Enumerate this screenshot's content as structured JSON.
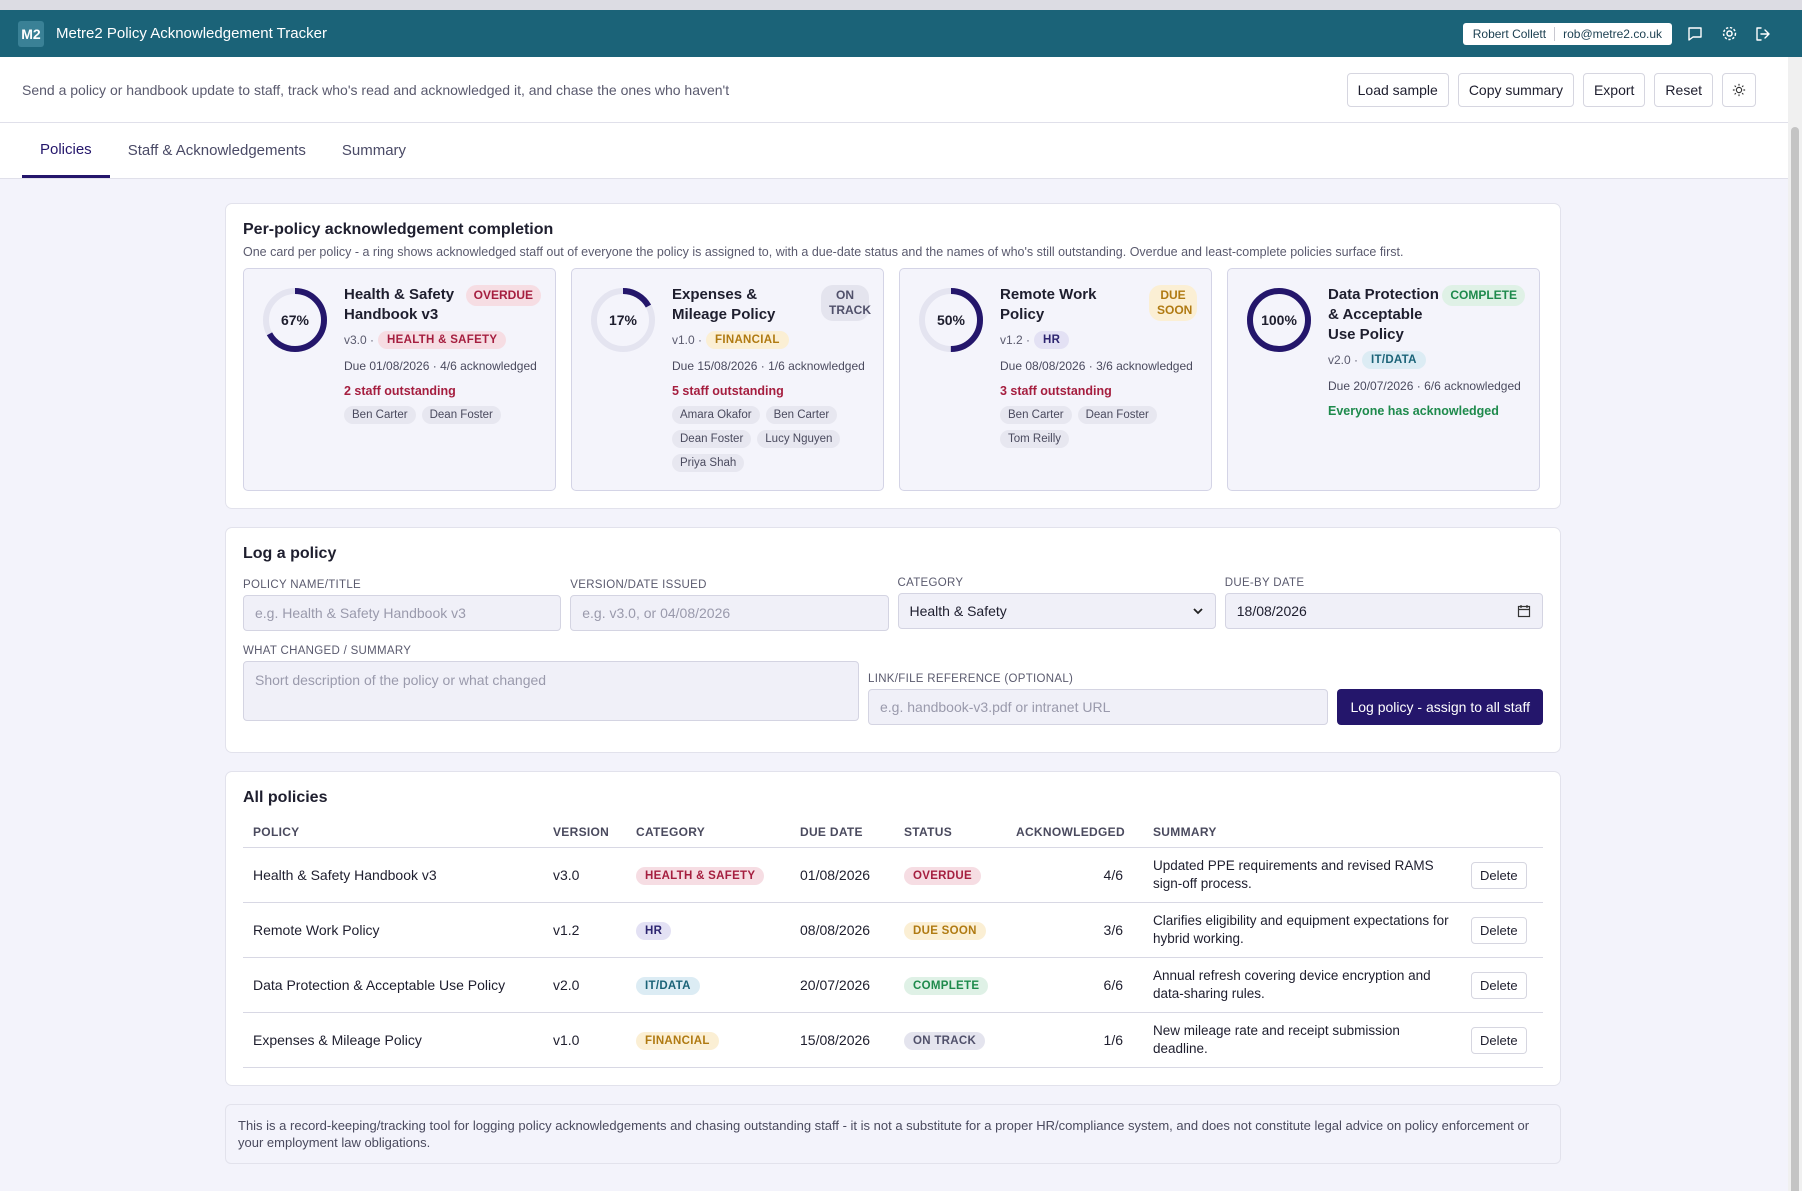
{
  "app": {
    "logo": "M2",
    "title": "Metre2 Policy Acknowledgement Tracker",
    "user_name": "Robert Collett",
    "user_email": "rob@metre2.co.uk"
  },
  "subbar": {
    "description": "Send a policy or handbook update to staff, track who's read and acknowledged it, and chase the ones who haven't",
    "load_sample": "Load sample",
    "copy_summary": "Copy summary",
    "export": "Export",
    "reset": "Reset"
  },
  "tabs": [
    {
      "label": "Policies",
      "active": true
    },
    {
      "label": "Staff & Acknowledgements",
      "active": false
    },
    {
      "label": "Summary",
      "active": false
    }
  ],
  "completion": {
    "title": "Per-policy acknowledgement completion",
    "description": "One card per policy - a ring shows acknowledged staff out of everyone the policy is assigned to, with a due-date status and the names of who's still outstanding. Overdue and least-complete policies surface first.",
    "cards": [
      {
        "pct_label": "67%",
        "fraction": 0.67,
        "title": "Health & Safety Handbook v3",
        "status": "OVERDUE",
        "version": "v3.0 ·",
        "category": "HEALTH & SAFETY",
        "due": "Due 01/08/2026 · 4/6 acknowledged",
        "outstanding": "2 staff outstanding",
        "names": [
          "Ben Carter",
          "Dean Foster"
        ]
      },
      {
        "pct_label": "17%",
        "fraction": 0.17,
        "title": "Expenses & Mileage Policy",
        "status": "ON TRACK",
        "version": "v1.0 ·",
        "category": "FINANCIAL",
        "due": "Due 15/08/2026 · 1/6 acknowledged",
        "outstanding": "5 staff outstanding",
        "names": [
          "Amara Okafor",
          "Ben Carter",
          "Dean Foster",
          "Lucy Nguyen",
          "Priya Shah"
        ]
      },
      {
        "pct_label": "50%",
        "fraction": 0.5,
        "title": "Remote Work Policy",
        "status": "DUE SOON",
        "version": "v1.2 ·",
        "category": "HR",
        "due": "Due 08/08/2026 · 3/6 acknowledged",
        "outstanding": "3 staff outstanding",
        "names": [
          "Ben Carter",
          "Dean Foster",
          "Tom Reilly"
        ]
      },
      {
        "pct_label": "100%",
        "fraction": 1.0,
        "title": "Data Protection & Acceptable Use Policy",
        "status": "COMPLETE",
        "version": "v2.0 ·",
        "category": "IT/DATA",
        "due": "Due 20/07/2026 · 6/6 acknowledged",
        "outstanding": "Everyone has acknowledged",
        "names": []
      }
    ]
  },
  "log_form": {
    "title": "Log a policy",
    "name_label": "POLICY NAME/TITLE",
    "name_placeholder": "e.g. Health & Safety Handbook v3",
    "version_label": "VERSION/DATE ISSUED",
    "version_placeholder": "e.g. v3.0, or 04/08/2026",
    "category_label": "CATEGORY",
    "category_value": "Health & Safety",
    "due_label": "DUE-BY DATE",
    "due_value": "18/08/2026",
    "summary_label": "WHAT CHANGED / SUMMARY",
    "summary_placeholder": "Short description of the policy or what changed",
    "link_label": "LINK/FILE REFERENCE (OPTIONAL)",
    "link_placeholder": "e.g. handbook-v3.pdf or intranet URL",
    "submit": "Log policy - assign to all staff"
  },
  "all_policies": {
    "title": "All policies",
    "headers": [
      "POLICY",
      "VERSION",
      "CATEGORY",
      "DUE DATE",
      "STATUS",
      "ACKNOWLEDGED",
      "SUMMARY"
    ],
    "delete_label": "Delete",
    "rows": [
      {
        "policy": "Health & Safety Handbook v3",
        "version": "v3.0",
        "category": "HEALTH & SAFETY",
        "due": "01/08/2026",
        "status": "OVERDUE",
        "ack": "4/6",
        "summary": "Updated PPE requirements and revised RAMS sign-off process."
      },
      {
        "policy": "Remote Work Policy",
        "version": "v1.2",
        "category": "HR",
        "due": "08/08/2026",
        "status": "DUE SOON",
        "ack": "3/6",
        "summary": "Clarifies eligibility and equipment expectations for hybrid working."
      },
      {
        "policy": "Data Protection & Acceptable Use Policy",
        "version": "v2.0",
        "category": "IT/DATA",
        "due": "20/07/2026",
        "status": "COMPLETE",
        "ack": "6/6",
        "summary": "Annual refresh covering device encryption and data-sharing rules."
      },
      {
        "policy": "Expenses & Mileage Policy",
        "version": "v1.0",
        "category": "FINANCIAL",
        "due": "15/08/2026",
        "status": "ON TRACK",
        "ack": "1/6",
        "summary": "New mileage rate and receipt submission deadline."
      }
    ]
  },
  "disclaimer": "This is a record-keeping/tracking tool for logging policy acknowledgements and chasing outstanding staff - it is not a substitute for a proper HR/compliance system, and does not constitute legal advice on policy enforcement or your employment law obligations.",
  "colors": {
    "appbar": "#1b6378",
    "primary": "#24166b",
    "overdue": "#a51e3f",
    "complete": "#1e8a4c"
  }
}
